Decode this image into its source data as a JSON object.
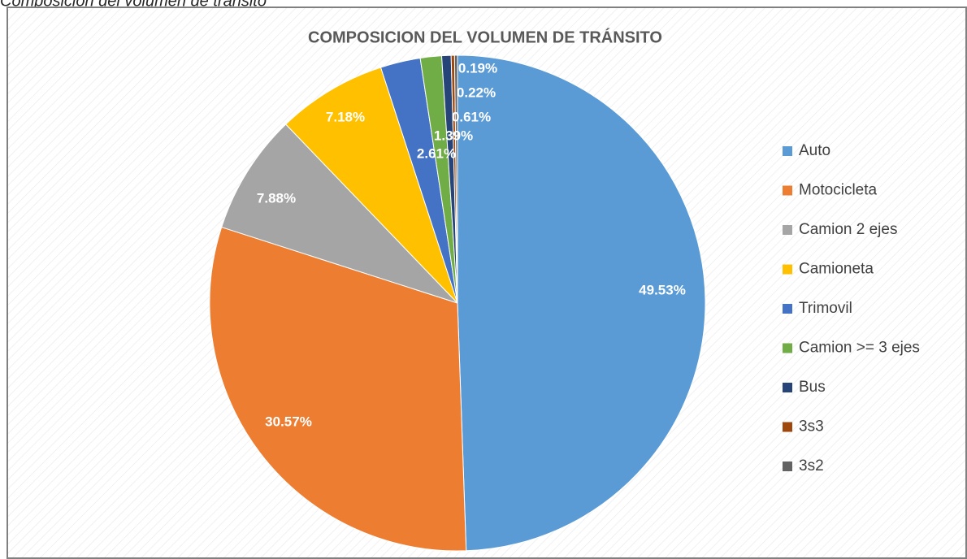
{
  "caption": "Composición del volumen de tránsito",
  "chart_data": {
    "type": "pie",
    "title": "COMPOSICION DEL VOLUMEN DE TRÁNSITO",
    "categories": [
      "Auto",
      "Motocicleta",
      "Camion 2 ejes",
      "Camioneta",
      "Trimovil",
      "Camion >= 3 ejes",
      "Bus",
      "3s3",
      "3s2"
    ],
    "values": [
      49.53,
      30.57,
      7.88,
      7.18,
      2.61,
      1.39,
      0.61,
      0.22,
      0.19
    ],
    "value_labels": [
      "49.53%",
      "30.57%",
      "7.88%",
      "7.18%",
      "2.61%",
      "1.39%",
      "0.61%",
      "0.22%",
      "0.19%"
    ],
    "colors": [
      "#5b9bd5",
      "#ed7d31",
      "#a5a5a5",
      "#ffc000",
      "#4472c4",
      "#70ad47",
      "#264478",
      "#9e480e",
      "#636363"
    ],
    "legend": "right"
  }
}
